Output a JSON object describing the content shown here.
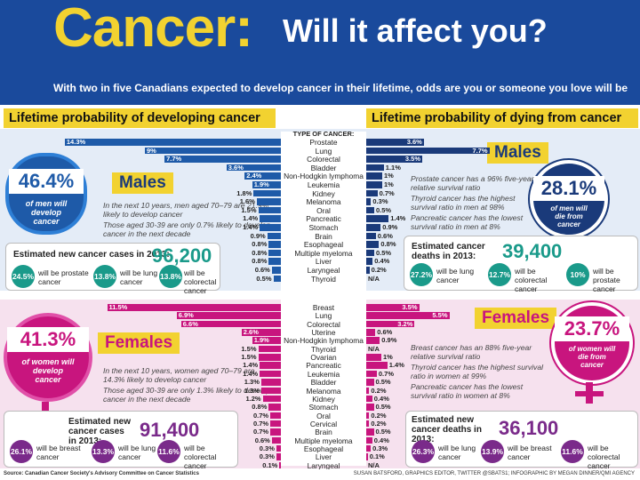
{
  "header": {
    "title_main": "Cancer:",
    "title_sub": "Will it affect you?",
    "subtitle": "With two in five Canadians expected to develop cancer in their lifetime, odds are you or someone you love will be"
  },
  "sections": {
    "left_title": "Lifetime probability of developing cancer",
    "right_title": "Lifetime probability of dying from cancer"
  },
  "chart_data": {
    "type": "bar",
    "males": {
      "header": "TYPE OF CANCER:",
      "categories": [
        "Prostate",
        "Lung",
        "Colorectal",
        "Bladder",
        "Non-Hodgkin lymphoma",
        "Leukemia",
        "Kidney",
        "Melanoma",
        "Oral",
        "Pancreatic",
        "Stomach",
        "Brain",
        "Esophageal",
        "Multiple myeloma",
        "Liver",
        "Laryngeal",
        "Thyroid"
      ],
      "developing_labels": [
        "14.3%",
        "9%",
        "7.7%",
        "3.6%",
        "2.4%",
        "1.9%",
        "1.8%",
        "1.6%",
        "1.5%",
        "1.4%",
        "1.4%",
        "0.9%",
        "0.8%",
        "0.8%",
        "0.8%",
        "0.6%",
        "0.5%"
      ],
      "developing_values": [
        14.3,
        9,
        7.7,
        3.6,
        2.4,
        1.9,
        1.8,
        1.6,
        1.5,
        1.4,
        1.4,
        0.9,
        0.8,
        0.8,
        0.8,
        0.6,
        0.5
      ],
      "dying_labels": [
        "3.6%",
        "7.7%",
        "3.5%",
        "1.1%",
        "1%",
        "1%",
        "0.7%",
        "0.3%",
        "0.5%",
        "1.4%",
        "0.9%",
        "0.6%",
        "0.8%",
        "0.5%",
        "0.4%",
        "0.2%",
        "N/A"
      ],
      "dying_values": [
        3.6,
        7.7,
        3.5,
        1.1,
        1,
        1,
        0.7,
        0.3,
        0.5,
        1.4,
        0.9,
        0.6,
        0.8,
        0.5,
        0.4,
        0.2,
        0
      ]
    },
    "females": {
      "categories": [
        "Breast",
        "Lung",
        "Colorectal",
        "Uterine",
        "Non-Hodgkin lymphoma",
        "Thyroid",
        "Ovarian",
        "Pancreatic",
        "Leukemia",
        "Bladder",
        "Melanoma",
        "Kidney",
        "Stomach",
        "Oral",
        "Cervical",
        "Brain",
        "Multiple myeloma",
        "Esophageal",
        "Liver",
        "Laryngeal"
      ],
      "developing_labels": [
        "11.5%",
        "6.9%",
        "6.6%",
        "2.6%",
        "1.9%",
        "1.5%",
        "1.5%",
        "1.4%",
        "1.4%",
        "1.3%",
        "1.3%",
        "1.2%",
        "0.8%",
        "0.7%",
        "0.7%",
        "0.7%",
        "0.6%",
        "0.3%",
        "0.3%",
        "0.1%"
      ],
      "developing_values": [
        11.5,
        6.9,
        6.6,
        2.6,
        1.9,
        1.5,
        1.5,
        1.4,
        1.4,
        1.3,
        1.3,
        1.2,
        0.8,
        0.7,
        0.7,
        0.7,
        0.6,
        0.3,
        0.3,
        0.1
      ],
      "dying_labels": [
        "3.5%",
        "5.5%",
        "3.2%",
        "0.6%",
        "0.9%",
        "N/A",
        "1%",
        "1.4%",
        "0.7%",
        "0.5%",
        "0.2%",
        "0.4%",
        "0.5%",
        "0.2%",
        "0.2%",
        "0.5%",
        "0.4%",
        "0.3%",
        "0.1%",
        "N/A"
      ],
      "dying_values": [
        3.5,
        5.5,
        3.2,
        0.6,
        0.9,
        0,
        1,
        1.4,
        0.7,
        0.5,
        0.2,
        0.4,
        0.5,
        0.2,
        0.2,
        0.5,
        0.4,
        0.3,
        0.1,
        0
      ]
    }
  },
  "males": {
    "label": "Males",
    "develop_pct": "46.4%",
    "develop_text": "of men will develop cancer",
    "die_pct": "28.1%",
    "die_text": "of men will die from cancer",
    "note_left_1": "In the next 10 years, men aged 70–79 are 21.9% likely to develop cancer",
    "note_left_2": "Those aged 30-39 are only 0.7% likely to develop cancer in the next decade",
    "note_right_1": "Prostate cancer has a 96% five-year relative survival ratio",
    "note_right_2": "Thyroid cancer has the highest survival ratio in men at 98%",
    "note_right_3": "Pancreatic cancer has the lowest survival ratio in men at 8%",
    "cases_title": "Estimated new cancer cases in 2013:",
    "cases_value": "96,200",
    "deaths_title": "Estimated cancer deaths in 2013:",
    "deaths_value": "39,400",
    "cases_breakdown": [
      {
        "pct": "24.5%",
        "text": "will be prostate cancer"
      },
      {
        "pct": "13.8%",
        "text": "will be lung cancer"
      },
      {
        "pct": "13.8%",
        "text": "will be colorectal cancer"
      }
    ],
    "deaths_breakdown": [
      {
        "pct": "27.2%",
        "text": "will be lung cancer"
      },
      {
        "pct": "12.7%",
        "text": "will be colorectal cancer"
      },
      {
        "pct": "10%",
        "text": "will be prostate cancer"
      }
    ]
  },
  "females": {
    "label": "Females",
    "develop_pct": "41.3%",
    "develop_text": "of women will develop cancer",
    "die_pct": "23.7%",
    "die_text": "of women will die from cancer",
    "note_left_1": "In the next 10 years, women aged 70–79 are 14.3% likely to develop cancer",
    "note_left_2": "Those aged 30-39 are only 1.3% likely to develop cancer in the next decade",
    "note_right_1": "Breast cancer has an 88% five-year relative survival ratio",
    "note_right_2": "Thyroid cancer has the highest survival ratio in women at 99%",
    "note_right_3": "Pancreatic cancer has the lowest survival ratio in women at 8%",
    "cases_title": "Estimated new cancer cases in 2013:",
    "cases_value": "91,400",
    "deaths_title": "Estimated new cancer deaths in 2013:",
    "deaths_value": "36,100",
    "cases_breakdown": [
      {
        "pct": "26.1%",
        "text": "will be breast cancer"
      },
      {
        "pct": "13.3%",
        "text": "will be lung cancer"
      },
      {
        "pct": "11.6%",
        "text": "will be colorectal cancer"
      }
    ],
    "deaths_breakdown": [
      {
        "pct": "26.3%",
        "text": "will be lung cancer"
      },
      {
        "pct": "13.9%",
        "text": "will be breast cancer"
      },
      {
        "pct": "11.6%",
        "text": "will be colorectal cancer"
      }
    ]
  },
  "footer": {
    "source": "Source: Canadian Cancer Society's Advisory Committee on Cancer Statistics",
    "credit": "SUSAN BATSFORD, GRAPHICS EDITOR, TWITTER @SBATS1; INFOGRAPHIC BY MEGAN DINNER/QMI AGENCY"
  },
  "colors": {
    "navy": "#1a4a9c",
    "yellow": "#f2d230",
    "male_blue": "#1e5aa8",
    "female_magenta": "#c8157e",
    "teal": "#1a9a8a",
    "purple": "#7a2a8a"
  }
}
